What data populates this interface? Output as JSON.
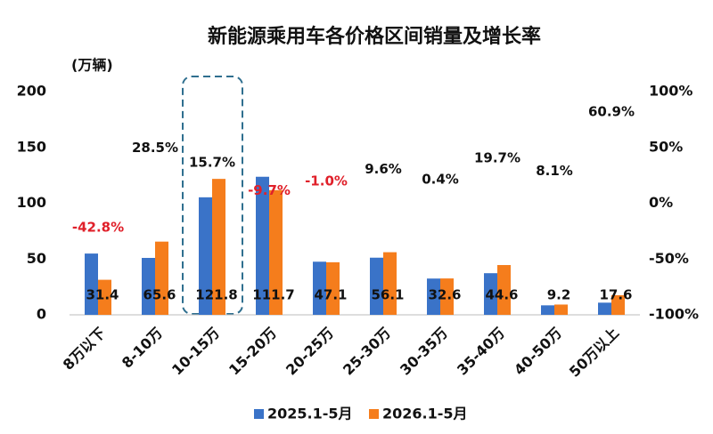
{
  "chart_data": {
    "type": "bar",
    "title": "新能源乘用车各价格区间销量及增长率",
    "y_label": "(万辆)",
    "categories": [
      "8万以下",
      "8-10万",
      "10-15万",
      "15-20万",
      "20-25万",
      "25-30万",
      "30-35万",
      "35-40万",
      "40-50万",
      "50万以上"
    ],
    "series": [
      {
        "name": "2025.1-5月",
        "color": "#3a73c8",
        "values": [
          54.9,
          51.0,
          105.3,
          123.7,
          47.6,
          51.2,
          32.5,
          37.3,
          8.5,
          10.9
        ]
      },
      {
        "name": "2026.1-5月",
        "color": "#f57d1c",
        "values": [
          31.4,
          65.6,
          121.8,
          111.7,
          47.1,
          56.1,
          32.6,
          44.6,
          9.2,
          17.6
        ],
        "show_labels": true
      }
    ],
    "growth_rates": {
      "axis": "y2",
      "values": [
        -42.8,
        28.5,
        15.7,
        -9.7,
        -1.0,
        9.6,
        0.4,
        19.7,
        8.1,
        60.9
      ],
      "value_labels": [
        "-42.8%",
        "28.5%",
        "15.7%",
        "-9.7%",
        "-1.0%",
        "9.6%",
        "0.4%",
        "19.7%",
        "8.1%",
        "60.9%"
      ],
      "negative_color": "#e0202a"
    },
    "ylim": [
      0,
      200
    ],
    "yticks": [
      0,
      50,
      100,
      150,
      200
    ],
    "y2lim": [
      -100,
      100
    ],
    "y2ticks": [
      {
        "value": -100,
        "label": "-100%"
      },
      {
        "value": -50,
        "label": "-50%"
      },
      {
        "value": 0,
        "label": "0%"
      },
      {
        "value": 50,
        "label": "50%"
      },
      {
        "value": 100,
        "label": "100%"
      }
    ],
    "legend": "bottom"
  }
}
